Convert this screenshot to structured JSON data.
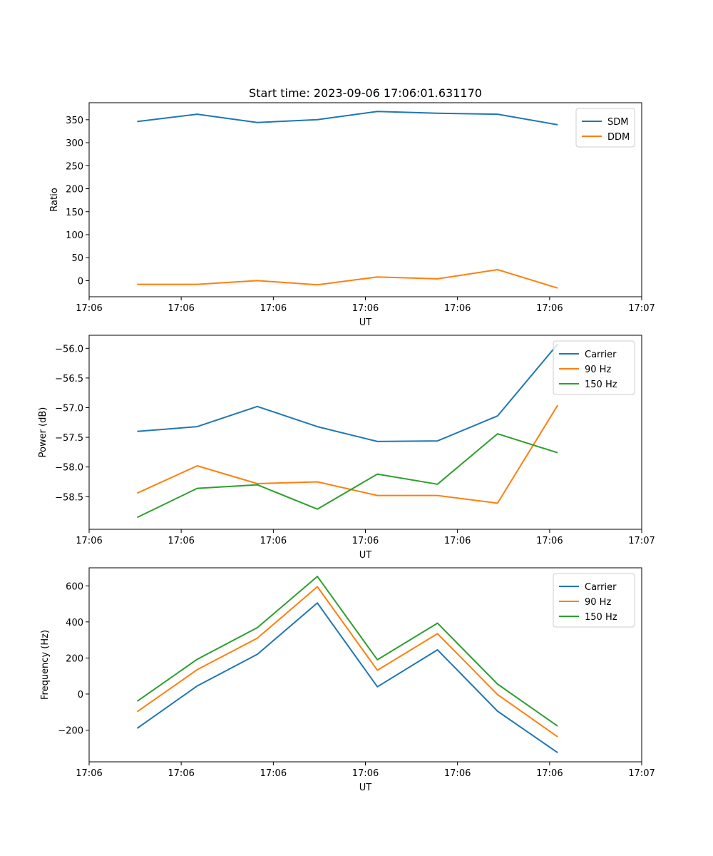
{
  "figure_title": "Start time: 2023-09-06 17:06:01.631170",
  "colors": {
    "blue": "#1f77b4",
    "orange": "#ff7f0e",
    "green": "#2ca02c"
  },
  "chart_data": [
    {
      "type": "line",
      "title": "Start time: 2023-09-06 17:06:01.631170",
      "xlabel": "UT",
      "ylabel": "Ratio",
      "x": [
        1,
        2,
        3,
        4,
        5,
        6,
        7,
        8
      ],
      "xlim": [
        0.2,
        9.4
      ],
      "x_ticks": [
        0.2,
        1.733,
        3.267,
        4.8,
        6.333,
        7.867,
        9.4
      ],
      "x_tick_labels": [
        "17:06",
        "17:06",
        "17:06",
        "17:06",
        "17:06",
        "17:06",
        "17:07"
      ],
      "ylim": [
        -35,
        387
      ],
      "y_ticks": [
        0,
        50,
        100,
        150,
        200,
        250,
        300,
        350
      ],
      "y_tick_labels": [
        "0",
        "50",
        "100",
        "150",
        "200",
        "250",
        "300",
        "350"
      ],
      "legend_position": "top-right",
      "series": [
        {
          "name": "SDM",
          "color": "#1f77b4",
          "values": [
            346,
            362,
            344,
            350,
            368,
            364,
            362,
            339
          ]
        },
        {
          "name": "DDM",
          "color": "#ff7f0e",
          "values": [
            -8,
            -8,
            0,
            -9,
            8,
            4,
            24,
            -16
          ]
        }
      ]
    },
    {
      "type": "line",
      "title": "",
      "xlabel": "UT",
      "ylabel": "Power (dB)",
      "x": [
        1,
        2,
        3,
        4,
        5,
        6,
        7,
        8
      ],
      "xlim": [
        0.2,
        9.4
      ],
      "x_ticks": [
        0.2,
        1.733,
        3.267,
        4.8,
        6.333,
        7.867,
        9.4
      ],
      "x_tick_labels": [
        "17:06",
        "17:06",
        "17:06",
        "17:06",
        "17:06",
        "17:06",
        "17:07"
      ],
      "ylim": [
        -59.05,
        -55.78
      ],
      "y_ticks": [
        -58.5,
        -58.0,
        -57.5,
        -57.0,
        -56.5,
        -56.0
      ],
      "y_tick_labels": [
        "−58.5",
        "−58.0",
        "−57.5",
        "−57.0",
        "−56.5",
        "−56.0"
      ],
      "legend_position": "top-right",
      "series": [
        {
          "name": "Carrier",
          "color": "#1f77b4",
          "values": [
            -57.4,
            -57.32,
            -56.98,
            -57.32,
            -57.57,
            -57.56,
            -57.14,
            -55.93
          ]
        },
        {
          "name": "90 Hz",
          "color": "#ff7f0e",
          "values": [
            -58.44,
            -57.98,
            -58.28,
            -58.25,
            -58.48,
            -58.48,
            -58.61,
            -56.96
          ]
        },
        {
          "name": "150 Hz",
          "color": "#2ca02c",
          "values": [
            -58.85,
            -58.36,
            -58.3,
            -58.71,
            -58.12,
            -58.29,
            -57.44,
            -57.76
          ]
        }
      ]
    },
    {
      "type": "line",
      "title": "",
      "xlabel": "UT",
      "ylabel": "Frequency (Hz)",
      "x": [
        1,
        2,
        3,
        4,
        5,
        6,
        7,
        8
      ],
      "xlim": [
        0.2,
        9.4
      ],
      "x_ticks": [
        0.2,
        1.733,
        3.267,
        4.8,
        6.333,
        7.867,
        9.4
      ],
      "x_tick_labels": [
        "17:06",
        "17:06",
        "17:06",
        "17:06",
        "17:06",
        "17:06",
        "17:07"
      ],
      "ylim": [
        -376,
        700
      ],
      "y_ticks": [
        -200,
        0,
        200,
        400,
        600
      ],
      "y_tick_labels": [
        "−200",
        "0",
        "200",
        "400",
        "600"
      ],
      "legend_position": "top-right",
      "series": [
        {
          "name": "Carrier",
          "color": "#1f77b4",
          "values": [
            -190,
            45,
            220,
            505,
            40,
            245,
            -95,
            -325
          ]
        },
        {
          "name": "90 Hz",
          "color": "#ff7f0e",
          "values": [
            -98,
            135,
            310,
            595,
            132,
            335,
            -3,
            -237
          ]
        },
        {
          "name": "150 Hz",
          "color": "#2ca02c",
          "values": [
            -40,
            193,
            368,
            652,
            190,
            393,
            55,
            -178
          ]
        }
      ]
    }
  ]
}
